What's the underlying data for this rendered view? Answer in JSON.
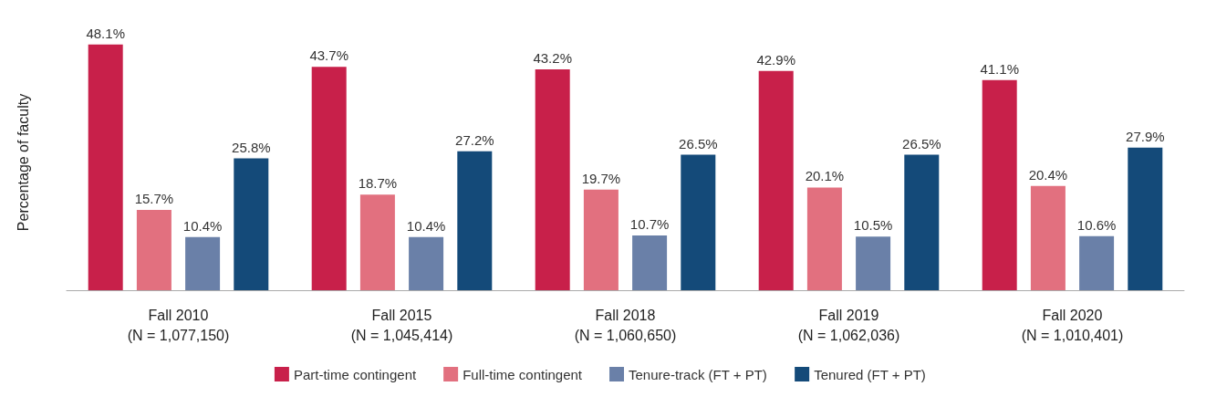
{
  "chart_data": {
    "type": "bar",
    "ylabel": "Percentage of faculty",
    "categories": [
      "Fall 2010\n(N = 1,077,150)",
      "Fall 2015\n(N = 1,045,414)",
      "Fall 2018\n(N = 1,060,650)",
      "Fall 2019\n(N = 1,062,036)",
      "Fall 2020\n(N = 1,010,401)"
    ],
    "series": [
      {
        "name": "Part-time contingent",
        "color": "#c8204a",
        "values": [
          48.1,
          43.7,
          43.2,
          42.9,
          41.1
        ],
        "value_labels": [
          "48.1%",
          "43.7%",
          "43.2%",
          "42.9%",
          "41.1%"
        ]
      },
      {
        "name": "Full-time contingent",
        "color": "#e2707f",
        "values": [
          15.7,
          18.7,
          19.7,
          20.1,
          20.4
        ],
        "value_labels": [
          "15.7%",
          "18.7%",
          "19.7%",
          "20.1%",
          "20.4%"
        ]
      },
      {
        "name": "Tenure-track (FT + PT)",
        "color": "#6a80a8",
        "values": [
          10.4,
          10.4,
          10.7,
          10.5,
          10.6
        ],
        "value_labels": [
          "10.4%",
          "10.4%",
          "10.7%",
          "10.5%",
          "10.6%"
        ]
      },
      {
        "name": "Tenured (FT + PT)",
        "color": "#144a79",
        "values": [
          25.8,
          27.2,
          26.5,
          26.5,
          27.9
        ],
        "value_labels": [
          "25.8%",
          "27.2%",
          "26.5%",
          "26.5%",
          "27.9%"
        ]
      }
    ],
    "legend": "bottom",
    "grid": false
  }
}
